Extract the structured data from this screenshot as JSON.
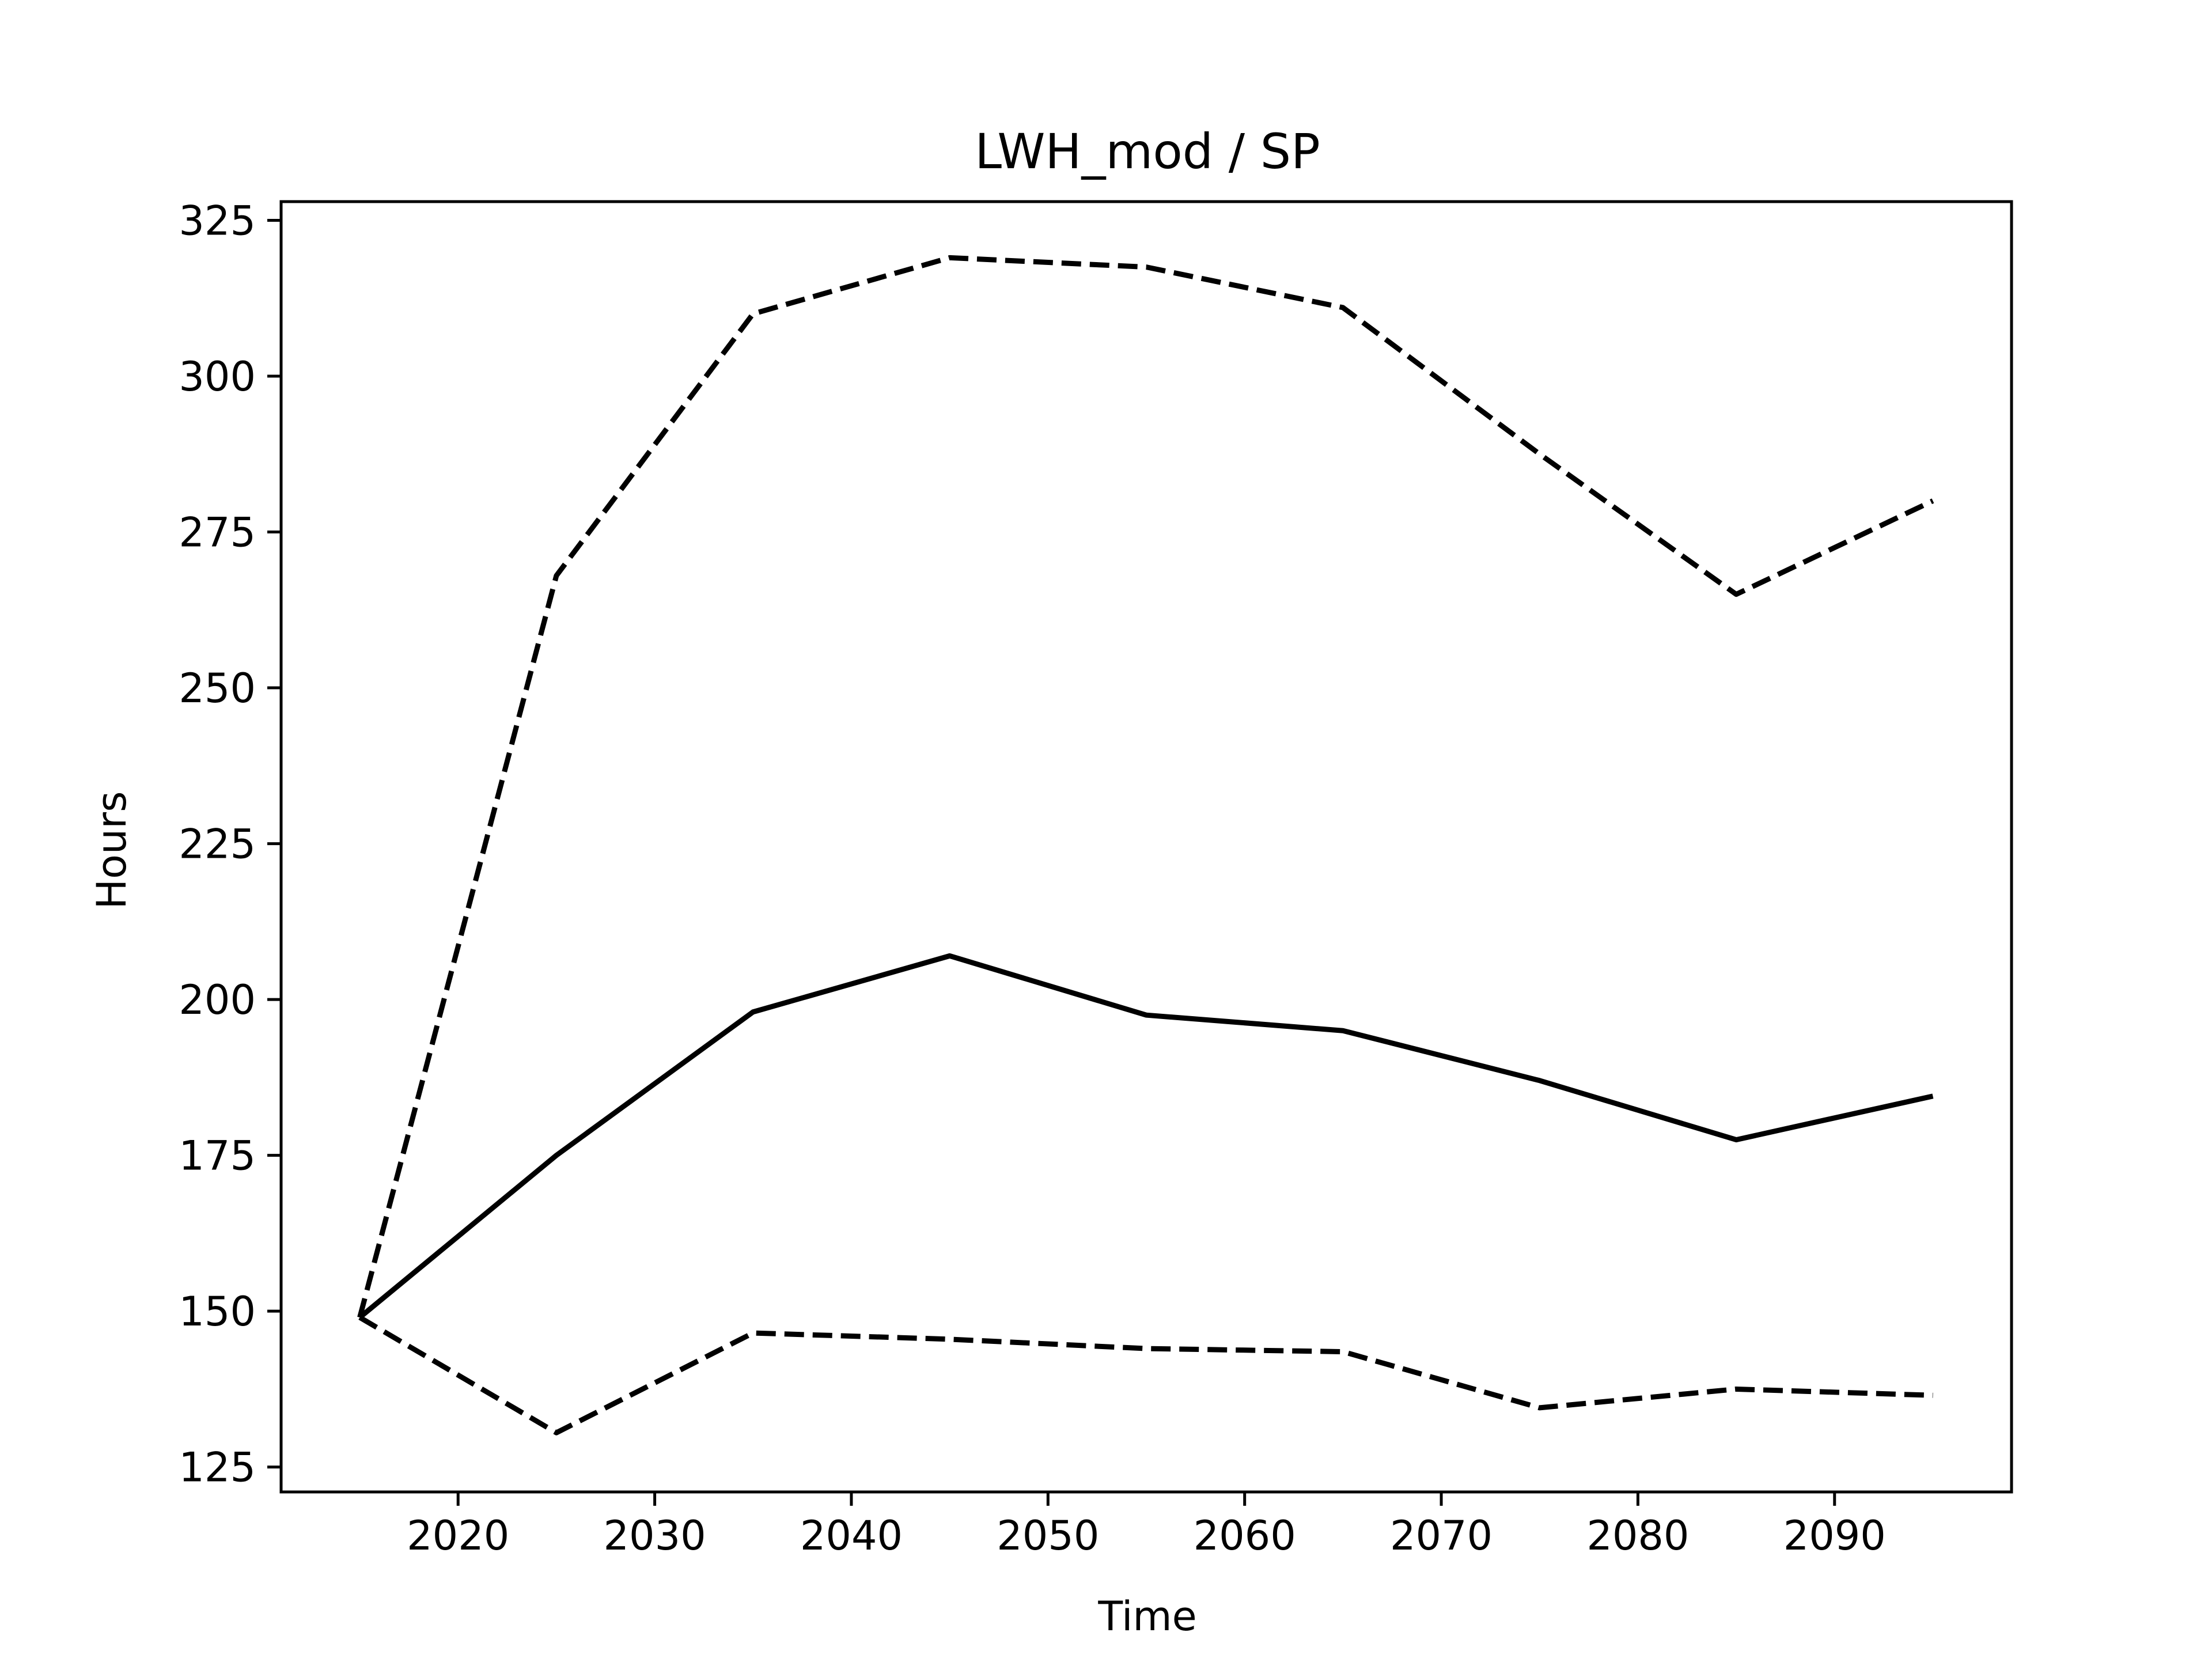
{
  "chart_data": {
    "type": "line",
    "title": "LWH_mod / SP",
    "xlabel": "Time",
    "ylabel": "Hours",
    "xlim": [
      2011,
      2099
    ],
    "ylim": [
      121,
      328
    ],
    "xticks": [
      2020,
      2030,
      2040,
      2050,
      2060,
      2070,
      2080,
      2090
    ],
    "yticks": [
      125,
      150,
      175,
      200,
      225,
      250,
      275,
      300,
      325
    ],
    "grid": false,
    "legend": "none",
    "x": [
      2015,
      2025,
      2035,
      2045,
      2055,
      2065,
      2075,
      2085,
      2095
    ],
    "series": [
      {
        "style": "solid",
        "color": "#000000",
        "values": [
          149,
          175,
          198,
          207,
          197.5,
          195,
          187,
          177.5,
          184.5
        ]
      },
      {
        "style": "dashed",
        "color": "#000000",
        "values": [
          149,
          268,
          310,
          319,
          317.5,
          311,
          287.5,
          265,
          280
        ]
      },
      {
        "style": "dashed",
        "color": "#000000",
        "values": [
          149,
          130.5,
          146.5,
          145.5,
          144,
          143.5,
          134.5,
          137.5,
          136.5
        ]
      }
    ]
  }
}
